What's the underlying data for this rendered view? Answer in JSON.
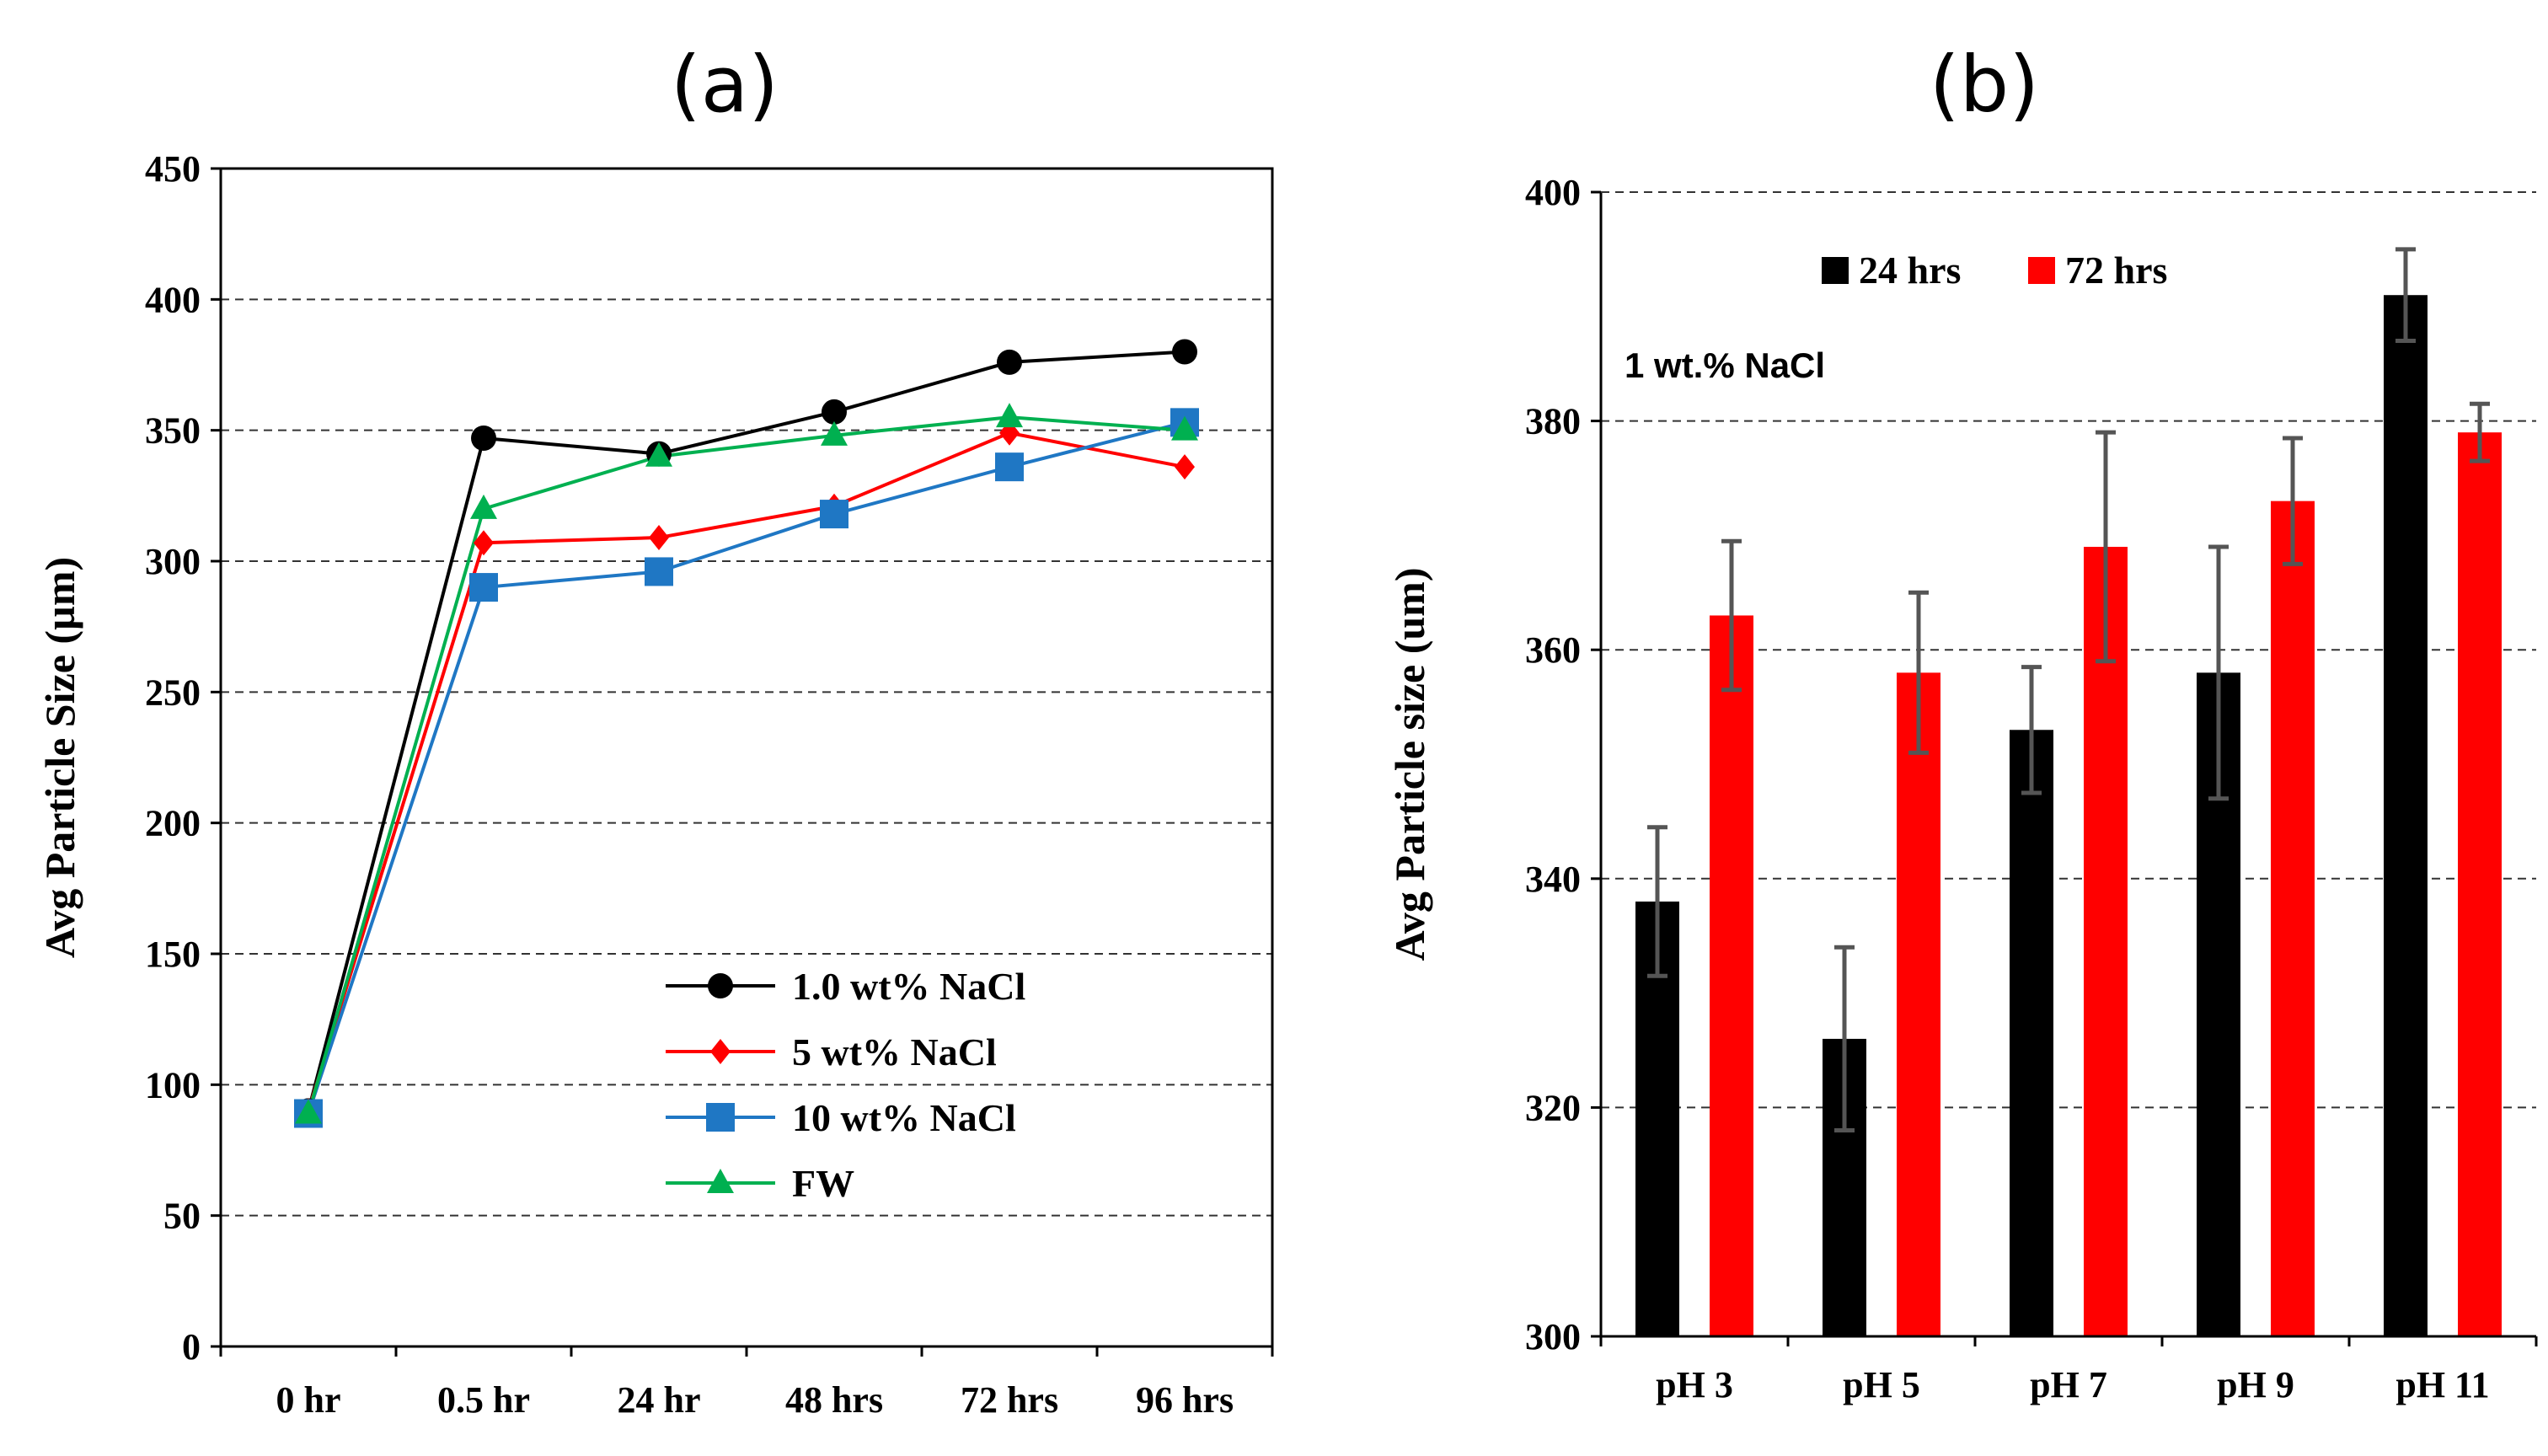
{
  "chart_data": [
    {
      "panel": "(a)",
      "type": "line",
      "title": "",
      "xlabel": "",
      "ylabel": "Avg Particle Size (µm)",
      "categories": [
        "0 hr",
        "0.5 hr",
        "24 hr",
        "48 hrs",
        "72 hrs",
        "96 hrs"
      ],
      "ylim": [
        0,
        450
      ],
      "yticks": [
        0,
        50,
        100,
        150,
        200,
        250,
        300,
        350,
        400,
        450
      ],
      "grid": true,
      "legend_position": "bottom-right",
      "series": [
        {
          "name": "1.0 wt% NaCl",
          "color": "#000000",
          "marker": "circle",
          "values": [
            90,
            347,
            341,
            357,
            376,
            380
          ]
        },
        {
          "name": "5 wt% NaCl",
          "color": "#ff0000",
          "marker": "diamond",
          "values": [
            90,
            307,
            309,
            321,
            349,
            336
          ]
        },
        {
          "name": "10 wt% NaCl",
          "color": "#1f77c4",
          "marker": "square",
          "values": [
            89,
            290,
            296,
            318,
            336,
            353
          ]
        },
        {
          "name": "FW",
          "color": "#00b050",
          "marker": "triangle",
          "values": [
            89,
            320,
            340,
            348,
            355,
            350
          ]
        }
      ]
    },
    {
      "panel": "(b)",
      "type": "bar",
      "title": "",
      "xlabel": "",
      "ylabel": "Avg Particle size (um)",
      "annotation": "1 wt.% NaCl",
      "categories": [
        "pH 3",
        "pH 5",
        "pH 7",
        "pH 9",
        "pH 11"
      ],
      "ylim": [
        300,
        400
      ],
      "yticks": [
        300,
        320,
        340,
        360,
        380,
        400
      ],
      "grid": true,
      "legend_position": "top-left",
      "series": [
        {
          "name": "24 hrs",
          "color": "#000000",
          "values": [
            338,
            326,
            353,
            358,
            391
          ],
          "errors": [
            6.5,
            8,
            5.5,
            11,
            4
          ]
        },
        {
          "name": "72 hrs",
          "color": "#ff0000",
          "values": [
            363,
            358,
            369,
            373,
            379
          ],
          "errors": [
            6.5,
            7,
            10,
            5.5,
            2.5
          ]
        }
      ]
    }
  ]
}
